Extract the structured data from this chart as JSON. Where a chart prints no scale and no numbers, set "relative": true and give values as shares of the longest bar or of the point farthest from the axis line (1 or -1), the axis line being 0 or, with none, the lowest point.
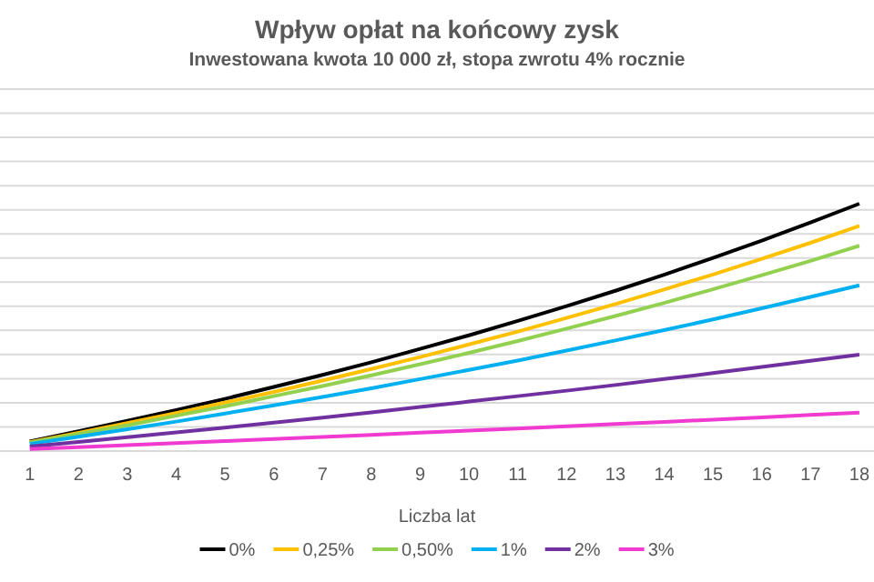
{
  "chart_data": {
    "type": "line",
    "title": "Wpływ opłat na końcowy zysk",
    "subtitle": "Inwestowana kwota 10 000 zł, stopa zwrotu 4% rocznie",
    "xlabel": "Liczba lat",
    "relative": true,
    "grid": "y",
    "legend": "bottom",
    "marker": "none",
    "line_style": "solid",
    "x": [
      1,
      2,
      3,
      4,
      5,
      6,
      7,
      8,
      9,
      10,
      11,
      12,
      13,
      14,
      15,
      16,
      17,
      18
    ],
    "xlim": [
      0.39,
      18.3
    ],
    "xticks": [
      1,
      2,
      3,
      4,
      5,
      6,
      7,
      8,
      9,
      10,
      11,
      12,
      13,
      14,
      15,
      16,
      17,
      18
    ],
    "series": [
      {
        "name": "0%",
        "color": "#000000",
        "values": [
          0.039,
          0.08,
          0.122,
          0.166,
          0.211,
          0.259,
          0.308,
          0.359,
          0.413,
          0.468,
          0.526,
          0.586,
          0.648,
          0.713,
          0.781,
          0.851,
          0.924,
          1
        ]
      },
      {
        "name": "0,25%",
        "color": "#ffc000",
        "values": [
          0.036,
          0.074,
          0.113,
          0.154,
          0.196,
          0.239,
          0.285,
          0.332,
          0.38,
          0.431,
          0.483,
          0.538,
          0.594,
          0.653,
          0.714,
          0.777,
          0.842,
          0.91
        ]
      },
      {
        "name": "0,50%",
        "color": "#92d050",
        "values": [
          0.034,
          0.069,
          0.104,
          0.143,
          0.181,
          0.222,
          0.263,
          0.306,
          0.351,
          0.397,
          0.445,
          0.495,
          0.546,
          0.599,
          0.654,
          0.711,
          0.769,
          0.83
        ]
      },
      {
        "name": "1%",
        "color": "#00b0f0",
        "values": [
          0.029,
          0.058,
          0.088,
          0.119,
          0.152,
          0.185,
          0.219,
          0.254,
          0.291,
          0.328,
          0.366,
          0.406,
          0.447,
          0.489,
          0.532,
          0.577,
          0.623,
          0.67
        ]
      },
      {
        "name": "2%",
        "color": "#7030a0",
        "values": [
          0.018,
          0.037,
          0.056,
          0.075,
          0.095,
          0.115,
          0.135,
          0.156,
          0.178,
          0.2,
          0.222,
          0.244,
          0.267,
          0.291,
          0.315,
          0.34,
          0.365,
          0.39
        ]
      },
      {
        "name": "3%",
        "color": "#f03ad0",
        "values": [
          0.008,
          0.016,
          0.024,
          0.032,
          0.04,
          0.049,
          0.057,
          0.065,
          0.074,
          0.083,
          0.091,
          0.1,
          0.109,
          0.118,
          0.127,
          0.136,
          0.146,
          0.155
        ]
      }
    ]
  }
}
